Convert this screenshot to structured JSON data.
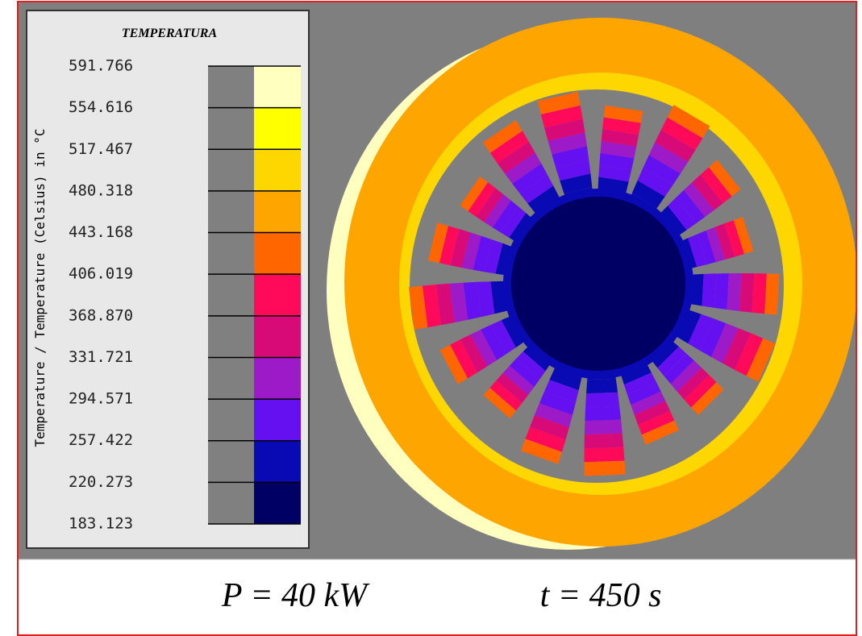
{
  "legend": {
    "title": "TEMPERATURA",
    "axis_label": "Temperature / Temperature (Celsius) in °C",
    "ticks": [
      "591.766",
      "554.616",
      "517.467",
      "480.318",
      "443.168",
      "406.019",
      "368.870",
      "331.721",
      "294.571",
      "257.422",
      "220.273",
      "183.123"
    ],
    "colors": [
      "#ffffc0",
      "#ffff00",
      "#ffd700",
      "#ffa500",
      "#ff6600",
      "#ff0a5a",
      "#d80a78",
      "#9c1ac8",
      "#6410f0",
      "#0a0ab4",
      "#000064"
    ]
  },
  "caption": {
    "power": "P = 40 kW",
    "time": "t = 450 s"
  }
}
